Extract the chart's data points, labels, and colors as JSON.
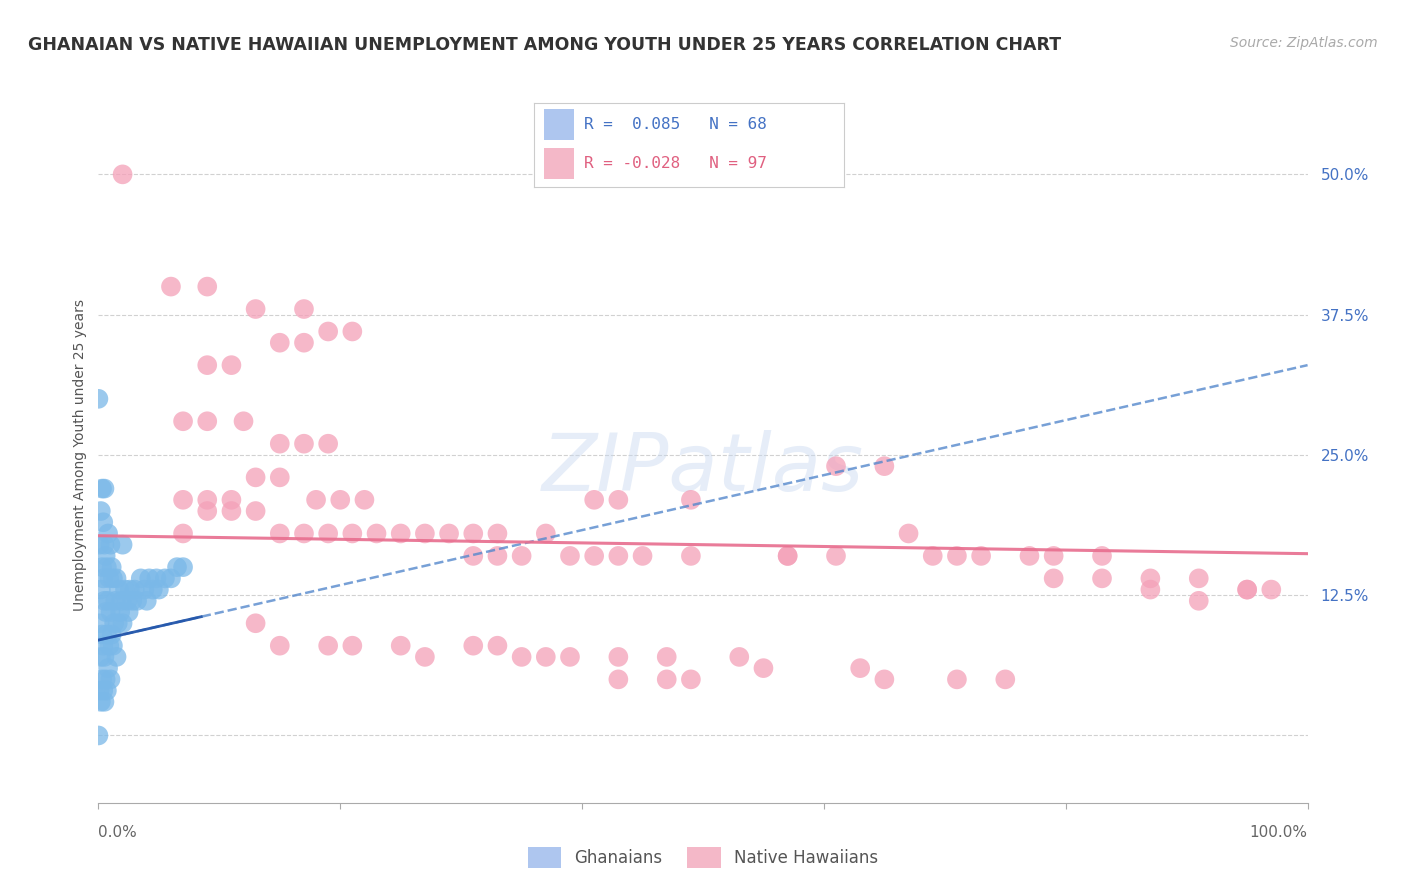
{
  "title": "GHANAIAN VS NATIVE HAWAIIAN UNEMPLOYMENT AMONG YOUTH UNDER 25 YEARS CORRELATION CHART",
  "source": "Source: ZipAtlas.com",
  "ylabel": "Unemployment Among Youth under 25 years",
  "yticks": [
    0.0,
    0.125,
    0.25,
    0.375,
    0.5
  ],
  "ytick_labels": [
    "",
    "12.5%",
    "25.0%",
    "37.5%",
    "50.0%"
  ],
  "xmin": 0.0,
  "xmax": 1.0,
  "ymin": -0.06,
  "ymax": 0.56,
  "ghanaian_color": "#7ab8e8",
  "hawaiian_color": "#f4a0b8",
  "ghanaian_line_color": "#5588cc",
  "hawaiian_line_color": "#e87090",
  "background_color": "#ffffff",
  "grid_color": "#cccccc",
  "title_fontsize": 12.5,
  "axis_label_fontsize": 10,
  "tick_fontsize": 11,
  "source_fontsize": 10,
  "ghanaian_x": [
    0.0,
    0.001,
    0.001,
    0.001,
    0.002,
    0.002,
    0.002,
    0.002,
    0.003,
    0.003,
    0.003,
    0.003,
    0.004,
    0.004,
    0.004,
    0.004,
    0.005,
    0.005,
    0.005,
    0.005,
    0.005,
    0.006,
    0.006,
    0.006,
    0.007,
    0.007,
    0.007,
    0.008,
    0.008,
    0.008,
    0.009,
    0.009,
    0.01,
    0.01,
    0.01,
    0.011,
    0.011,
    0.012,
    0.012,
    0.013,
    0.014,
    0.015,
    0.015,
    0.016,
    0.017,
    0.018,
    0.019,
    0.02,
    0.02,
    0.022,
    0.024,
    0.025,
    0.026,
    0.028,
    0.03,
    0.032,
    0.035,
    0.038,
    0.04,
    0.042,
    0.045,
    0.048,
    0.05,
    0.055,
    0.06,
    0.065,
    0.07,
    0.0
  ],
  "ghanaian_y": [
    0.0,
    0.04,
    0.1,
    0.17,
    0.03,
    0.07,
    0.13,
    0.2,
    0.05,
    0.09,
    0.15,
    0.22,
    0.04,
    0.08,
    0.14,
    0.19,
    0.03,
    0.07,
    0.12,
    0.17,
    0.22,
    0.05,
    0.11,
    0.16,
    0.04,
    0.09,
    0.15,
    0.06,
    0.12,
    0.18,
    0.08,
    0.14,
    0.05,
    0.11,
    0.17,
    0.09,
    0.15,
    0.08,
    0.14,
    0.1,
    0.12,
    0.07,
    0.14,
    0.1,
    0.13,
    0.11,
    0.12,
    0.1,
    0.17,
    0.13,
    0.12,
    0.11,
    0.13,
    0.12,
    0.13,
    0.12,
    0.14,
    0.13,
    0.12,
    0.14,
    0.13,
    0.14,
    0.13,
    0.14,
    0.14,
    0.15,
    0.15,
    0.3
  ],
  "hawaiian_x": [
    0.02,
    0.06,
    0.09,
    0.13,
    0.17,
    0.19,
    0.21,
    0.09,
    0.11,
    0.15,
    0.17,
    0.07,
    0.09,
    0.12,
    0.15,
    0.17,
    0.19,
    0.07,
    0.09,
    0.11,
    0.13,
    0.15,
    0.18,
    0.2,
    0.22,
    0.07,
    0.09,
    0.11,
    0.13,
    0.15,
    0.17,
    0.19,
    0.21,
    0.23,
    0.25,
    0.27,
    0.29,
    0.31,
    0.33,
    0.37,
    0.41,
    0.43,
    0.49,
    0.31,
    0.33,
    0.35,
    0.39,
    0.41,
    0.43,
    0.45,
    0.49,
    0.57,
    0.61,
    0.65,
    0.57,
    0.61,
    0.67,
    0.69,
    0.71,
    0.73,
    0.77,
    0.79,
    0.83,
    0.87,
    0.91,
    0.95,
    0.13,
    0.15,
    0.19,
    0.21,
    0.25,
    0.27,
    0.31,
    0.33,
    0.35,
    0.37,
    0.39,
    0.43,
    0.47,
    0.49,
    0.53,
    0.55,
    0.63,
    0.65,
    0.71,
    0.75,
    0.79,
    0.83,
    0.87,
    0.91,
    0.95,
    0.97,
    0.43,
    0.47
  ],
  "hawaiian_y": [
    0.5,
    0.4,
    0.4,
    0.38,
    0.38,
    0.36,
    0.36,
    0.33,
    0.33,
    0.35,
    0.35,
    0.28,
    0.28,
    0.28,
    0.26,
    0.26,
    0.26,
    0.21,
    0.21,
    0.21,
    0.23,
    0.23,
    0.21,
    0.21,
    0.21,
    0.18,
    0.2,
    0.2,
    0.2,
    0.18,
    0.18,
    0.18,
    0.18,
    0.18,
    0.18,
    0.18,
    0.18,
    0.18,
    0.18,
    0.18,
    0.21,
    0.21,
    0.21,
    0.16,
    0.16,
    0.16,
    0.16,
    0.16,
    0.16,
    0.16,
    0.16,
    0.16,
    0.24,
    0.24,
    0.16,
    0.16,
    0.18,
    0.16,
    0.16,
    0.16,
    0.16,
    0.16,
    0.16,
    0.14,
    0.14,
    0.13,
    0.1,
    0.08,
    0.08,
    0.08,
    0.08,
    0.07,
    0.08,
    0.08,
    0.07,
    0.07,
    0.07,
    0.07,
    0.07,
    0.05,
    0.07,
    0.06,
    0.06,
    0.05,
    0.05,
    0.05,
    0.14,
    0.14,
    0.13,
    0.12,
    0.13,
    0.13,
    0.05,
    0.05
  ],
  "ghanaian_line_x": [
    0.0,
    1.0
  ],
  "ghanaian_line_y": [
    0.085,
    0.33
  ],
  "hawaiian_line_x": [
    0.0,
    1.0
  ],
  "hawaiian_line_y": [
    0.178,
    0.162
  ]
}
